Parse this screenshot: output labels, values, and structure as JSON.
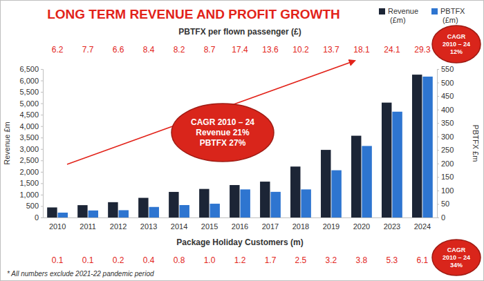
{
  "chart_data": {
    "type": "bar",
    "title": "LONG TERM REVENUE AND PROFIT GROWTH",
    "categories": [
      "2010",
      "2011",
      "2012",
      "2013",
      "2014",
      "2015",
      "2016",
      "2017",
      "2018",
      "2019",
      "2020",
      "2023",
      "2024"
    ],
    "series": [
      {
        "name": "Revenue (£m)",
        "color": "#1c2536",
        "values": [
          440,
          540,
          670,
          860,
          1120,
          1250,
          1420,
          1570,
          2230,
          2960,
          3580,
          5030,
          6255
        ]
      },
      {
        "name": "PBTFX (£m)",
        "color": "#2e75d0",
        "axis": "y2",
        "values": [
          18,
          26,
          27,
          39,
          46,
          51,
          104,
          95,
          104,
          175,
          265,
          392,
          522
        ]
      }
    ],
    "y_label": "Revenue £m",
    "y2_label": "PBTFX £m",
    "ylim": [
      0,
      6500
    ],
    "yticks": [
      0,
      500,
      {
        "value": 1000,
        "label": "1,000"
      },
      {
        "value": 1500,
        "label": "1,500"
      },
      {
        "value": 2000,
        "label": "2,000"
      },
      {
        "value": 2500,
        "label": "2,500"
      },
      {
        "value": 3000,
        "label": "3,000"
      },
      {
        "value": 3500,
        "label": "3,500"
      },
      {
        "value": 4000,
        "label": "4,000"
      },
      {
        "value": 4500,
        "label": "4,500"
      },
      {
        "value": 5000,
        "label": "5,000"
      },
      {
        "value": 5500,
        "label": "5,500"
      },
      {
        "value": 6000,
        "label": "6,000"
      },
      {
        "value": 6500,
        "label": "6,500"
      }
    ],
    "y2lim": [
      0,
      550
    ],
    "y2ticks": [
      0,
      50,
      100,
      150,
      200,
      250,
      300,
      350,
      400,
      450,
      500,
      550
    ],
    "grid": false,
    "legend": "top-right",
    "pbtfx_per_passenger": {
      "title": "PBTFX per flown passenger (£)",
      "values": [
        6.2,
        7.7,
        6.6,
        8.4,
        8.2,
        8.7,
        17.4,
        13.6,
        10.2,
        13.7,
        18.1,
        24.1,
        29.3
      ]
    },
    "package_holiday_customers": {
      "title": "Package Holiday Customers (m)",
      "values": [
        0.1,
        0.1,
        0.2,
        0.4,
        0.8,
        1.0,
        1.2,
        1.7,
        2.5,
        3.2,
        3.8,
        5.3,
        6.1
      ],
      "value_labels": [
        "0.1",
        "0.1",
        "0.2",
        "0.4",
        "0.8",
        "1.0",
        "1.2",
        "1.7",
        "2.5",
        "3.2",
        "3.8",
        "5.3",
        "6.1"
      ]
    },
    "annotations": [
      {
        "lines": [
          "CAGR 2010 – 24",
          "Revenue 21%",
          "PBTFX 27%"
        ]
      },
      {
        "lines": [
          "CAGR",
          "2010 – 24",
          "12%"
        ]
      },
      {
        "lines": [
          "CAGR",
          "2010 – 24",
          "34%"
        ]
      }
    ],
    "footnote": "* All numbers exclude 2021-22 pandemic period"
  }
}
